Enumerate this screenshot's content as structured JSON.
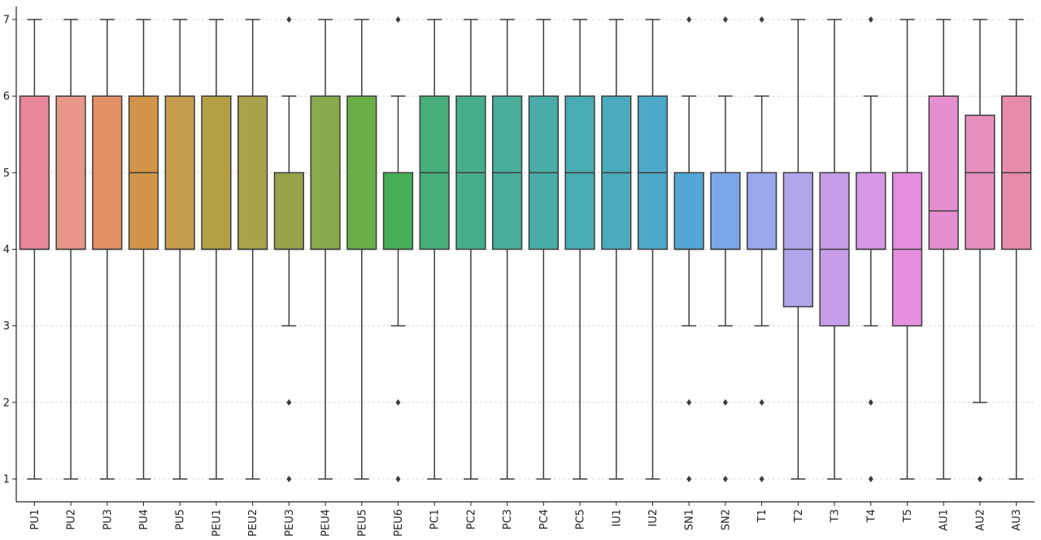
{
  "chart_data": {
    "type": "box",
    "title": "",
    "xlabel": "",
    "ylabel": "",
    "ylim": [
      0.7,
      7.2
    ],
    "yticks": [
      1,
      2,
      3,
      4,
      5,
      6,
      7
    ],
    "grid": "horizontal-dashed",
    "categories": [
      "PU1",
      "PU2",
      "PU3",
      "PU4",
      "PU5",
      "PEU1",
      "PEU2",
      "PEU3",
      "PEU4",
      "PEU5",
      "PEU6",
      "PC1",
      "PC2",
      "PC3",
      "PC4",
      "PC5",
      "IU1",
      "IU2",
      "SN1",
      "SN2",
      "T1",
      "T2",
      "T3",
      "T4",
      "T5",
      "AU1",
      "AU2",
      "AU3"
    ],
    "boxes": [
      {
        "label": "PU1",
        "whisker_low": 1,
        "q1": 4,
        "median": 4,
        "q3": 6,
        "whisker_high": 7,
        "outliers": [],
        "color": "#e8879a"
      },
      {
        "label": "PU2",
        "whisker_low": 1,
        "q1": 4,
        "median": 4,
        "q3": 6,
        "whisker_high": 7,
        "outliers": [],
        "color": "#e8968a"
      },
      {
        "label": "PU3",
        "whisker_low": 1,
        "q1": 4,
        "median": 4,
        "q3": 6,
        "whisker_high": 7,
        "outliers": [],
        "color": "#e38f66"
      },
      {
        "label": "PU4",
        "whisker_low": 1,
        "q1": 4,
        "median": 5,
        "q3": 6,
        "whisker_high": 7,
        "outliers": [],
        "color": "#d29448"
      },
      {
        "label": "PU5",
        "whisker_low": 1,
        "q1": 4,
        "median": 4,
        "q3": 6,
        "whisker_high": 7,
        "outliers": [],
        "color": "#c49c4c"
      },
      {
        "label": "PEU1",
        "whisker_low": 1,
        "q1": 4,
        "median": 4,
        "q3": 6,
        "whisker_high": 7,
        "outliers": [],
        "color": "#b39f44"
      },
      {
        "label": "PEU2",
        "whisker_low": 1,
        "q1": 4,
        "median": 4,
        "q3": 6,
        "whisker_high": 7,
        "outliers": [],
        "color": "#a7a24a"
      },
      {
        "label": "PEU3",
        "whisker_low": 3,
        "q1": 4,
        "median": 4,
        "q3": 5,
        "whisker_high": 6,
        "outliers": [
          1,
          2,
          7
        ],
        "color": "#97a24a"
      },
      {
        "label": "PEU4",
        "whisker_low": 1,
        "q1": 4,
        "median": 4,
        "q3": 6,
        "whisker_high": 7,
        "outliers": [],
        "color": "#86aa4c"
      },
      {
        "label": "PEU5",
        "whisker_low": 1,
        "q1": 4,
        "median": 4,
        "q3": 6,
        "whisker_high": 7,
        "outliers": [],
        "color": "#6aae48"
      },
      {
        "label": "PEU6",
        "whisker_low": 3,
        "q1": 4,
        "median": 4,
        "q3": 5,
        "whisker_high": 6,
        "outliers": [
          1,
          2,
          7
        ],
        "color": "#46ae56"
      },
      {
        "label": "PC1",
        "whisker_low": 1,
        "q1": 4,
        "median": 5,
        "q3": 6,
        "whisker_high": 7,
        "outliers": [],
        "color": "#47ae7a"
      },
      {
        "label": "PC2",
        "whisker_low": 1,
        "q1": 4,
        "median": 5,
        "q3": 6,
        "whisker_high": 7,
        "outliers": [],
        "color": "#47ae8c"
      },
      {
        "label": "PC3",
        "whisker_low": 1,
        "q1": 4,
        "median": 5,
        "q3": 6,
        "whisker_high": 7,
        "outliers": [],
        "color": "#48ae9a"
      },
      {
        "label": "PC4",
        "whisker_low": 1,
        "q1": 4,
        "median": 5,
        "q3": 6,
        "whisker_high": 7,
        "outliers": [],
        "color": "#48ada8"
      },
      {
        "label": "PC5",
        "whisker_low": 1,
        "q1": 4,
        "median": 5,
        "q3": 6,
        "whisker_high": 7,
        "outliers": [],
        "color": "#48acb4"
      },
      {
        "label": "IU1",
        "whisker_low": 1,
        "q1": 4,
        "median": 5,
        "q3": 6,
        "whisker_high": 7,
        "outliers": [],
        "color": "#4aabbc"
      },
      {
        "label": "IU2",
        "whisker_low": 1,
        "q1": 4,
        "median": 5,
        "q3": 6,
        "whisker_high": 7,
        "outliers": [],
        "color": "#4ca8c8"
      },
      {
        "label": "SN1",
        "whisker_low": 3,
        "q1": 4,
        "median": 4,
        "q3": 5,
        "whisker_high": 6,
        "outliers": [
          1,
          2,
          7
        ],
        "color": "#52a6d8"
      },
      {
        "label": "SN2",
        "whisker_low": 3,
        "q1": 4,
        "median": 4,
        "q3": 5,
        "whisker_high": 6,
        "outliers": [
          1,
          2,
          7
        ],
        "color": "#7aa7e8"
      },
      {
        "label": "T1",
        "whisker_low": 3,
        "q1": 4,
        "median": 4,
        "q3": 5,
        "whisker_high": 6,
        "outliers": [
          1,
          2,
          7
        ],
        "color": "#9aa8ec"
      },
      {
        "label": "T2",
        "whisker_low": 1,
        "q1": 3.25,
        "median": 4,
        "q3": 5,
        "whisker_high": 7,
        "outliers": [],
        "color": "#b1a6ec"
      },
      {
        "label": "T3",
        "whisker_low": 1,
        "q1": 3,
        "median": 4,
        "q3": 5,
        "whisker_high": 7,
        "outliers": [],
        "color": "#c79ce8"
      },
      {
        "label": "T4",
        "whisker_low": 3,
        "q1": 4,
        "median": 4,
        "q3": 5,
        "whisker_high": 6,
        "outliers": [
          1,
          2,
          7
        ],
        "color": "#d796e6"
      },
      {
        "label": "T5",
        "whisker_low": 1,
        "q1": 3,
        "median": 4,
        "q3": 5,
        "whisker_high": 7,
        "outliers": [],
        "color": "#e68ee0"
      },
      {
        "label": "AU1",
        "whisker_low": 1,
        "q1": 4,
        "median": 4.5,
        "q3": 6,
        "whisker_high": 7,
        "outliers": [],
        "color": "#e68fd0"
      },
      {
        "label": "AU2",
        "whisker_low": 2,
        "q1": 4,
        "median": 5,
        "q3": 5.75,
        "whisker_high": 7,
        "outliers": [
          1
        ],
        "color": "#e78fbd"
      },
      {
        "label": "AU3",
        "whisker_low": 1,
        "q1": 4,
        "median": 5,
        "q3": 6,
        "whisker_high": 7,
        "outliers": [],
        "color": "#e68ba8"
      }
    ],
    "colors": {
      "line": "#3c3c3c",
      "grid": "#cfcfcf",
      "axis": "#222222"
    }
  }
}
